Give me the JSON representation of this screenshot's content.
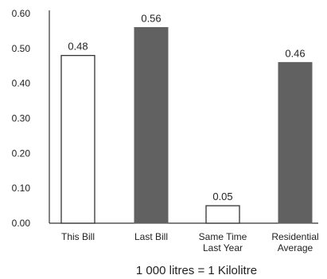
{
  "chart_data": {
    "type": "bar",
    "categories": [
      [
        "This Bill"
      ],
      [
        "Last Bill"
      ],
      [
        "Same Time",
        "Last Year"
      ],
      [
        "Residential",
        "Average"
      ]
    ],
    "values": [
      0.48,
      0.56,
      0.05,
      0.46
    ],
    "value_labels": [
      "0.48",
      "0.56",
      "0.05",
      "0.46"
    ],
    "bar_styles": [
      "outline",
      "filled",
      "outline",
      "filled"
    ],
    "ylim": [
      0,
      0.6
    ],
    "yticks": [
      "0.00",
      "0.10",
      "0.20",
      "0.30",
      "0.40",
      "0.50",
      "0.60"
    ],
    "ytick_values": [
      0,
      0.1,
      0.2,
      0.3,
      0.4,
      0.5,
      0.6
    ],
    "grid": false,
    "footnote": "1 000 litres = 1 Kilolitre",
    "colors": {
      "filled": "#616161",
      "outline_fill": "#ffffff",
      "stroke": "#333333"
    }
  }
}
